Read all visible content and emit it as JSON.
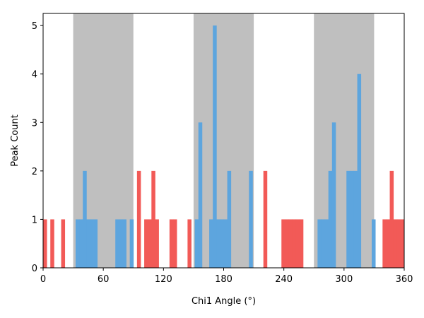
{
  "chart_data": {
    "type": "bar",
    "xlabel": "Chi1 Angle (°)",
    "ylabel": "Peak Count",
    "xlim": [
      0,
      360
    ],
    "ylim": [
      0,
      5.25
    ],
    "xticks": [
      0,
      60,
      120,
      180,
      240,
      300,
      360
    ],
    "yticks": [
      0,
      1,
      2,
      3,
      4,
      5
    ],
    "bin_width": 3.6,
    "grid": false,
    "legend": "none",
    "shaded_regions": [
      [
        30,
        90
      ],
      [
        150,
        210
      ],
      [
        270,
        330
      ]
    ],
    "colors": {
      "inside": "#5da5de",
      "outside": "#f25a57",
      "shade": "#bfbfbf"
    },
    "bins": [
      {
        "x": 0,
        "v": 1,
        "g": "outside"
      },
      {
        "x": 7.2,
        "v": 1,
        "g": "outside"
      },
      {
        "x": 18,
        "v": 1,
        "g": "outside"
      },
      {
        "x": 32.4,
        "v": 1,
        "g": "inside"
      },
      {
        "x": 36,
        "v": 1,
        "g": "inside"
      },
      {
        "x": 39.6,
        "v": 2,
        "g": "inside"
      },
      {
        "x": 43.2,
        "v": 1,
        "g": "inside"
      },
      {
        "x": 46.8,
        "v": 1,
        "g": "inside"
      },
      {
        "x": 50.4,
        "v": 1,
        "g": "inside"
      },
      {
        "x": 72,
        "v": 1,
        "g": "inside"
      },
      {
        "x": 75.6,
        "v": 1,
        "g": "inside"
      },
      {
        "x": 79.2,
        "v": 1,
        "g": "inside"
      },
      {
        "x": 86.4,
        "v": 1,
        "g": "inside"
      },
      {
        "x": 93.6,
        "v": 2,
        "g": "outside"
      },
      {
        "x": 100.8,
        "v": 1,
        "g": "outside"
      },
      {
        "x": 104.4,
        "v": 1,
        "g": "outside"
      },
      {
        "x": 108,
        "v": 2,
        "g": "outside"
      },
      {
        "x": 111.6,
        "v": 1,
        "g": "outside"
      },
      {
        "x": 126,
        "v": 1,
        "g": "outside"
      },
      {
        "x": 129.6,
        "v": 1,
        "g": "outside"
      },
      {
        "x": 144,
        "v": 1,
        "g": "outside"
      },
      {
        "x": 151.2,
        "v": 1,
        "g": "inside"
      },
      {
        "x": 154.8,
        "v": 3,
        "g": "inside"
      },
      {
        "x": 165.6,
        "v": 1,
        "g": "inside"
      },
      {
        "x": 169.2,
        "v": 5,
        "g": "inside"
      },
      {
        "x": 172.8,
        "v": 1,
        "g": "inside"
      },
      {
        "x": 176.4,
        "v": 1,
        "g": "inside"
      },
      {
        "x": 180,
        "v": 1,
        "g": "inside"
      },
      {
        "x": 183.6,
        "v": 2,
        "g": "inside"
      },
      {
        "x": 205.2,
        "v": 2,
        "g": "inside"
      },
      {
        "x": 219.6,
        "v": 2,
        "g": "outside"
      },
      {
        "x": 237.6,
        "v": 1,
        "g": "outside"
      },
      {
        "x": 241.2,
        "v": 1,
        "g": "outside"
      },
      {
        "x": 244.8,
        "v": 1,
        "g": "outside"
      },
      {
        "x": 248.4,
        "v": 1,
        "g": "outside"
      },
      {
        "x": 252,
        "v": 1,
        "g": "outside"
      },
      {
        "x": 255.6,
        "v": 1,
        "g": "outside"
      },
      {
        "x": 273.6,
        "v": 1,
        "g": "inside"
      },
      {
        "x": 277.2,
        "v": 1,
        "g": "inside"
      },
      {
        "x": 280.8,
        "v": 1,
        "g": "inside"
      },
      {
        "x": 284.4,
        "v": 2,
        "g": "inside"
      },
      {
        "x": 288,
        "v": 3,
        "g": "inside"
      },
      {
        "x": 302.4,
        "v": 2,
        "g": "inside"
      },
      {
        "x": 306,
        "v": 2,
        "g": "inside"
      },
      {
        "x": 309.6,
        "v": 2,
        "g": "inside"
      },
      {
        "x": 313.2,
        "v": 4,
        "g": "inside"
      },
      {
        "x": 327.6,
        "v": 1,
        "g": "inside"
      },
      {
        "x": 338.4,
        "v": 1,
        "g": "outside"
      },
      {
        "x": 342,
        "v": 1,
        "g": "outside"
      },
      {
        "x": 345.6,
        "v": 2,
        "g": "outside"
      },
      {
        "x": 349.2,
        "v": 1,
        "g": "outside"
      },
      {
        "x": 352.8,
        "v": 1,
        "g": "outside"
      },
      {
        "x": 356.4,
        "v": 1,
        "g": "outside"
      }
    ]
  }
}
